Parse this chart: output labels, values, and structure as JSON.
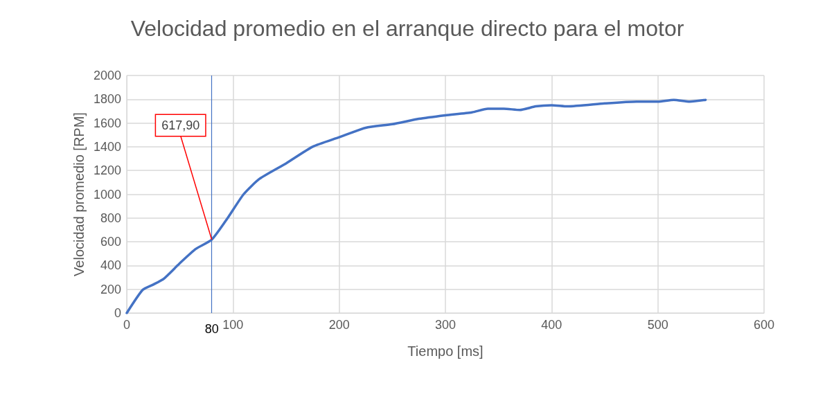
{
  "chart_data": {
    "type": "line",
    "title": "Velocidad promedio en el arranque directo para el motor",
    "xlabel": "Tiempo [ms]",
    "ylabel": "Velocidad promedio [RPM]",
    "xlim": [
      0,
      600
    ],
    "xticks": [
      0,
      100,
      200,
      300,
      400,
      500,
      600
    ],
    "ylim": [
      0,
      2000
    ],
    "yticks": [
      0,
      200,
      400,
      600,
      800,
      1000,
      1200,
      1400,
      1600,
      1800,
      2000
    ],
    "grid": true,
    "marker": "none",
    "line_style": "solid",
    "series": [
      {
        "color": "#4472c4",
        "x": [
          0,
          15,
          25,
          35,
          50,
          65,
          80,
          95,
          110,
          125,
          150,
          175,
          200,
          225,
          250,
          275,
          300,
          325,
          340,
          355,
          370,
          385,
          400,
          415,
          450,
          480,
          500,
          515,
          530,
          545
        ],
        "values": [
          0,
          195,
          240,
          290,
          420,
          540,
          617.9,
          800,
          1000,
          1130,
          1260,
          1400,
          1480,
          1560,
          1590,
          1635,
          1665,
          1690,
          1720,
          1720,
          1710,
          1740,
          1750,
          1740,
          1765,
          1780,
          1780,
          1795,
          1780,
          1795
        ]
      }
    ],
    "ref_lines": [
      {
        "axis": "x",
        "value": 80,
        "label": "80",
        "color": "#4472c4",
        "line_style": "solid"
      }
    ],
    "annotations": [
      {
        "text": "617,90",
        "x": 80,
        "y": 617.9
      }
    ]
  }
}
